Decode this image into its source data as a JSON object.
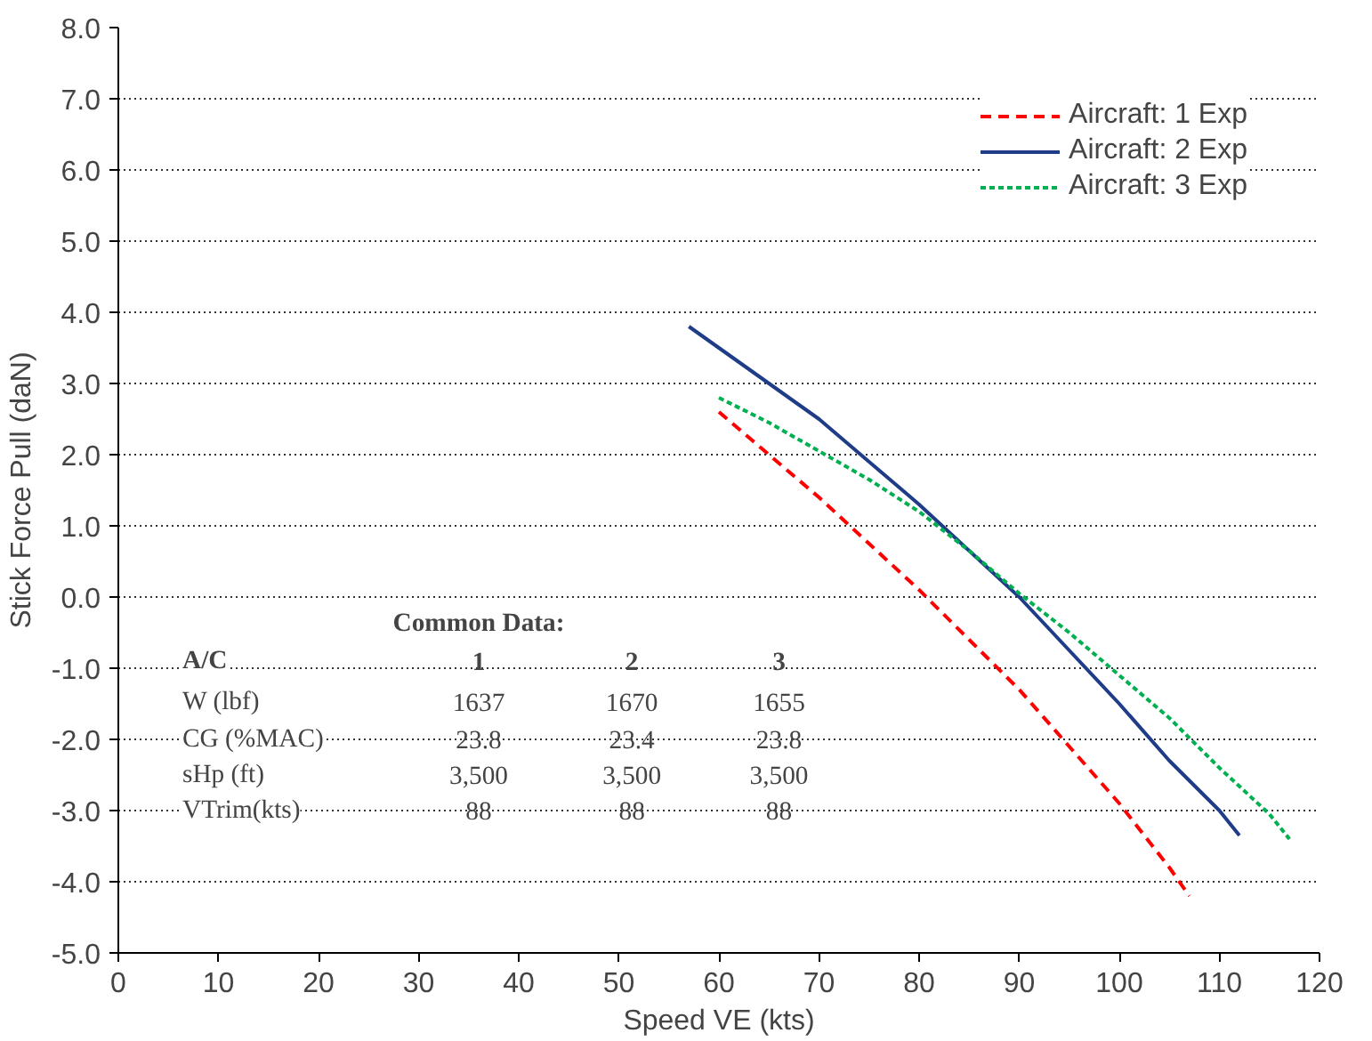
{
  "chart_data": {
    "type": "line",
    "xlabel": "Speed VE (kts)",
    "ylabel": "Stick Force Pull (daN)",
    "xlim": [
      0,
      120
    ],
    "xticks": [
      0,
      10,
      20,
      30,
      40,
      50,
      60,
      70,
      80,
      90,
      100,
      110,
      120
    ],
    "ylim": [
      -5,
      8
    ],
    "yticks": [
      {
        "value": -5,
        "label": "-5.0"
      },
      {
        "value": -4,
        "label": "-4.0"
      },
      {
        "value": -3,
        "label": "-3.0"
      },
      {
        "value": -2,
        "label": "-2.0"
      },
      {
        "value": -1,
        "label": "-1.0"
      },
      {
        "value": 0,
        "label": "0.0"
      },
      {
        "value": 1,
        "label": "1.0"
      },
      {
        "value": 2,
        "label": "2.0"
      },
      {
        "value": 3,
        "label": "3.0"
      },
      {
        "value": 4,
        "label": "4.0"
      },
      {
        "value": 5,
        "label": "5.0"
      },
      {
        "value": 6,
        "label": "6.0"
      },
      {
        "value": 7,
        "label": "7.0"
      },
      {
        "value": 8,
        "label": "8.0"
      }
    ],
    "grid": "y",
    "legend": "top right",
    "marker": "none",
    "series": [
      {
        "name": "Aircraft: 1 Exp",
        "color": "#ff0000",
        "line_style": "dashed",
        "x": [
          60,
          65,
          70,
          75,
          80,
          85,
          90,
          95,
          100,
          105,
          107
        ],
        "values": [
          2.6,
          2.0,
          1.4,
          0.75,
          0.1,
          -0.6,
          -1.3,
          -2.1,
          -2.9,
          -3.8,
          -4.2
        ]
      },
      {
        "name": "Aircraft: 2 Exp",
        "color": "#1f3c88",
        "line_style": "solid",
        "x": [
          57,
          60,
          65,
          70,
          75,
          80,
          85,
          90,
          95,
          100,
          105,
          110,
          112
        ],
        "values": [
          3.8,
          3.5,
          3.0,
          2.5,
          1.9,
          1.3,
          0.65,
          0.0,
          -0.75,
          -1.5,
          -2.3,
          -3.0,
          -3.35
        ]
      },
      {
        "name": "Aircraft: 3 Exp",
        "color": "#00b050",
        "line_style": "dotted",
        "x": [
          60,
          65,
          70,
          75,
          80,
          85,
          90,
          95,
          100,
          105,
          110,
          115,
          117
        ],
        "values": [
          2.8,
          2.45,
          2.05,
          1.65,
          1.2,
          0.65,
          0.05,
          -0.5,
          -1.1,
          -1.7,
          -2.4,
          -3.05,
          -3.4
        ]
      }
    ],
    "annotations": [
      "Common Data:",
      "A/C",
      "1",
      "2",
      "3",
      "W (lbf)",
      "1637",
      "1670",
      "1655",
      "CG (%MAC)",
      "23.8",
      "23.4",
      "23.8",
      "sHp (ft)",
      "3,500",
      "3,500",
      "3,500",
      "VTrim(kts)",
      "88",
      "88",
      "88"
    ]
  }
}
